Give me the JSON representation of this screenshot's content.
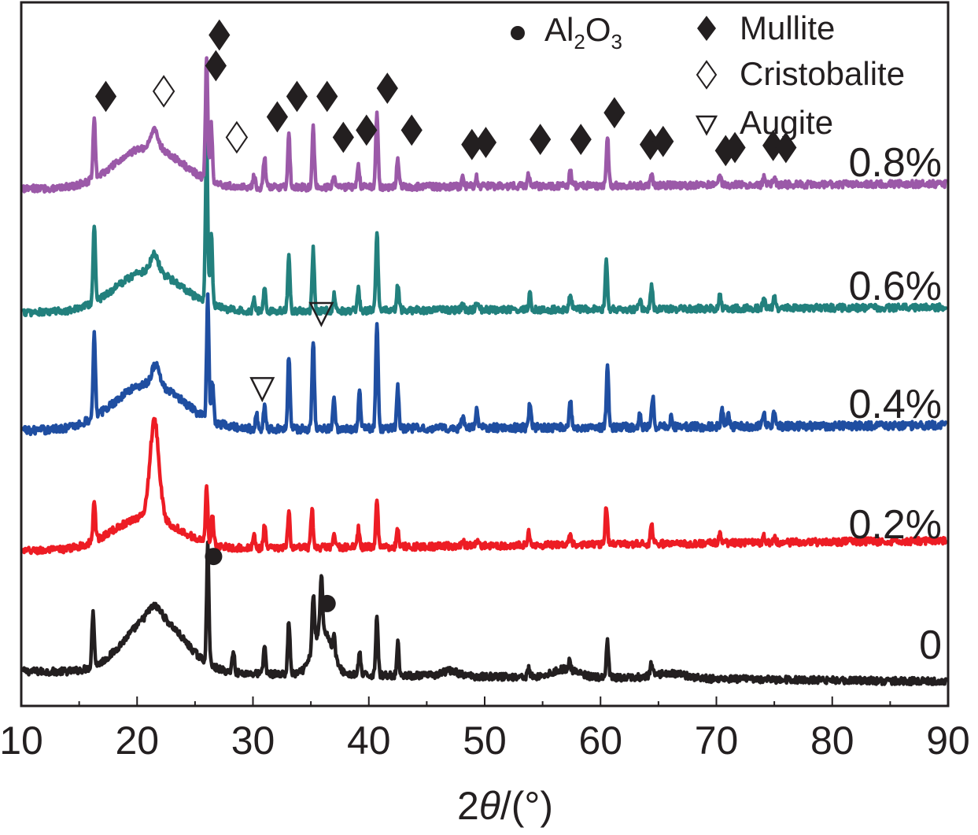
{
  "chart_data": {
    "type": "line",
    "title": "",
    "xlabel_prefix": "2",
    "xlabel_theta": "θ",
    "xlabel_suffix": "/(°)",
    "ylabel": "",
    "xlim": [
      10,
      90
    ],
    "xticks": [
      "10",
      "20",
      "30",
      "40",
      "50",
      "60",
      "70",
      "80",
      "90"
    ],
    "baselines": [
      0,
      1,
      2,
      3,
      4
    ],
    "series": [
      {
        "name": "0",
        "color": "#231f20",
        "baseline": 0,
        "slope": -0.1,
        "noise": 0.035,
        "humps": [
          [
            21.5,
            0.75,
            0.1
          ],
          [
            21.5,
            3.5,
            0.55
          ],
          [
            36.0,
            1.1,
            0.45
          ],
          [
            57.0,
            1.5,
            0.08
          ],
          [
            66.0,
            2.0,
            0.05
          ],
          [
            47.0,
            1.0,
            0.05
          ]
        ],
        "peaks": [
          [
            16.2,
            0.55
          ],
          [
            26.1,
            1.15
          ],
          [
            28.3,
            0.22
          ],
          [
            31.0,
            0.28
          ],
          [
            33.1,
            0.52
          ],
          [
            35.2,
            0.52
          ],
          [
            35.9,
            0.55
          ],
          [
            37.0,
            0.2
          ],
          [
            39.2,
            0.22
          ],
          [
            40.7,
            0.6
          ],
          [
            42.5,
            0.32
          ],
          [
            53.8,
            0.08
          ],
          [
            57.3,
            0.08
          ],
          [
            60.6,
            0.35
          ],
          [
            64.4,
            0.12
          ]
        ]
      },
      {
        "name": "0.2%",
        "color": "#ed1c24",
        "baseline": 1,
        "slope": 0.1,
        "noise": 0.035,
        "humps": [
          [
            20.8,
            4.0,
            0.32
          ],
          [
            21.5,
            0.55,
            0.95
          ]
        ],
        "peaks": [
          [
            16.3,
            0.4
          ],
          [
            26.0,
            0.55
          ],
          [
            26.5,
            0.3
          ],
          [
            30.1,
            0.12
          ],
          [
            31.0,
            0.22
          ],
          [
            33.1,
            0.35
          ],
          [
            35.1,
            0.38
          ],
          [
            37.0,
            0.12
          ],
          [
            39.1,
            0.18
          ],
          [
            40.7,
            0.48
          ],
          [
            42.5,
            0.18
          ],
          [
            48.1,
            0.05
          ],
          [
            49.3,
            0.06
          ],
          [
            53.8,
            0.12
          ],
          [
            57.4,
            0.1
          ],
          [
            60.5,
            0.38
          ],
          [
            64.4,
            0.2
          ],
          [
            70.3,
            0.08
          ],
          [
            74.1,
            0.06
          ],
          [
            75.0,
            0.05
          ]
        ]
      },
      {
        "name": "0.4%",
        "color": "#1f4ea1",
        "baseline": 2,
        "slope": 0.05,
        "noise": 0.04,
        "humps": [
          [
            21.0,
            4.2,
            0.45
          ],
          [
            21.6,
            0.45,
            0.2
          ]
        ],
        "peaks": [
          [
            16.3,
            0.85
          ],
          [
            26.1,
            1.2
          ],
          [
            26.5,
            0.4
          ],
          [
            30.3,
            0.15
          ],
          [
            31.0,
            0.22
          ],
          [
            33.1,
            0.72
          ],
          [
            35.2,
            0.88
          ],
          [
            37.0,
            0.28
          ],
          [
            39.2,
            0.35
          ],
          [
            40.7,
            1.05
          ],
          [
            42.5,
            0.42
          ],
          [
            48.1,
            0.12
          ],
          [
            49.3,
            0.18
          ],
          [
            53.9,
            0.25
          ],
          [
            57.4,
            0.25
          ],
          [
            60.6,
            0.6
          ],
          [
            63.4,
            0.12
          ],
          [
            64.5,
            0.3
          ],
          [
            66.1,
            0.1
          ],
          [
            70.5,
            0.15
          ],
          [
            71.0,
            0.12
          ],
          [
            74.1,
            0.15
          ],
          [
            75.0,
            0.15
          ]
        ]
      },
      {
        "name": "0.6%",
        "color": "#22807d",
        "baseline": 3,
        "slope": 0.05,
        "noise": 0.035,
        "humps": [
          [
            21.0,
            4.0,
            0.4
          ],
          [
            21.5,
            0.45,
            0.18
          ]
        ],
        "peaks": [
          [
            16.3,
            0.75
          ],
          [
            26.0,
            1.55
          ],
          [
            26.4,
            0.7
          ],
          [
            30.1,
            0.12
          ],
          [
            31.0,
            0.22
          ],
          [
            33.1,
            0.55
          ],
          [
            35.2,
            0.6
          ],
          [
            37.0,
            0.15
          ],
          [
            39.1,
            0.22
          ],
          [
            40.7,
            0.78
          ],
          [
            42.5,
            0.25
          ],
          [
            48.1,
            0.07
          ],
          [
            49.3,
            0.08
          ],
          [
            53.9,
            0.15
          ],
          [
            57.4,
            0.15
          ],
          [
            60.5,
            0.5
          ],
          [
            63.4,
            0.08
          ],
          [
            64.4,
            0.22
          ],
          [
            70.3,
            0.12
          ],
          [
            74.1,
            0.1
          ],
          [
            75.0,
            0.1
          ]
        ]
      },
      {
        "name": "0.8%",
        "color": "#9b59a8",
        "baseline": 4,
        "slope": 0.05,
        "noise": 0.035,
        "humps": [
          [
            21.0,
            4.0,
            0.4
          ],
          [
            21.5,
            0.45,
            0.18
          ]
        ],
        "peaks": [
          [
            16.3,
            0.6
          ],
          [
            26.0,
            1.2
          ],
          [
            26.4,
            0.55
          ],
          [
            30.1,
            0.12
          ],
          [
            31.0,
            0.3
          ],
          [
            33.1,
            0.5
          ],
          [
            35.2,
            0.58
          ],
          [
            37.0,
            0.12
          ],
          [
            39.1,
            0.22
          ],
          [
            40.7,
            0.75
          ],
          [
            42.5,
            0.28
          ],
          [
            48.1,
            0.08
          ],
          [
            49.3,
            0.1
          ],
          [
            53.8,
            0.12
          ],
          [
            57.4,
            0.15
          ],
          [
            60.6,
            0.48
          ],
          [
            64.4,
            0.1
          ],
          [
            70.3,
            0.08
          ],
          [
            74.1,
            0.08
          ],
          [
            75.0,
            0.08
          ]
        ]
      }
    ],
    "markers": {
      "mullite": {
        "series": 4,
        "positions": [
          [
            17.3,
            0.75
          ],
          [
            26.8,
            1.05
          ],
          [
            27.1,
            1.35
          ],
          [
            32.1,
            0.55
          ],
          [
            33.8,
            0.75
          ],
          [
            36.4,
            0.75
          ],
          [
            37.8,
            0.35
          ],
          [
            39.8,
            0.42
          ],
          [
            41.6,
            0.83
          ],
          [
            43.7,
            0.42
          ],
          [
            48.9,
            0.28
          ],
          [
            50.1,
            0.3
          ],
          [
            54.8,
            0.33
          ],
          [
            58.3,
            0.33
          ],
          [
            61.2,
            0.59
          ],
          [
            64.3,
            0.28
          ],
          [
            65.4,
            0.31
          ],
          [
            70.8,
            0.22
          ],
          [
            71.6,
            0.25
          ],
          [
            74.9,
            0.27
          ],
          [
            76.0,
            0.25
          ]
        ]
      },
      "cristobalite": {
        "series": 4,
        "positions": [
          [
            22.3,
            0.8
          ],
          [
            28.6,
            0.35
          ]
        ]
      },
      "augite": [
        {
          "series": 3,
          "x": 35.9,
          "offset": 0.0
        },
        {
          "series": 2,
          "x": 30.8,
          "offset": 0.42
        }
      ],
      "alumina": {
        "series": 0,
        "positions": [
          [
            26.6,
            1.03
          ],
          [
            36.4,
            0.57
          ]
        ]
      }
    },
    "legend": {
      "placement": "top-right",
      "entries": [
        {
          "symbol": "filled-circle",
          "label": "Al",
          "sub1": "2",
          "mid": "O",
          "sub2": "3"
        },
        {
          "symbol": "filled-diamond",
          "label": "Mullite"
        },
        {
          "symbol": "open-diamond",
          "label": "Cristobalite"
        },
        {
          "symbol": "open-triangle-down",
          "label": "Augite"
        }
      ]
    }
  }
}
